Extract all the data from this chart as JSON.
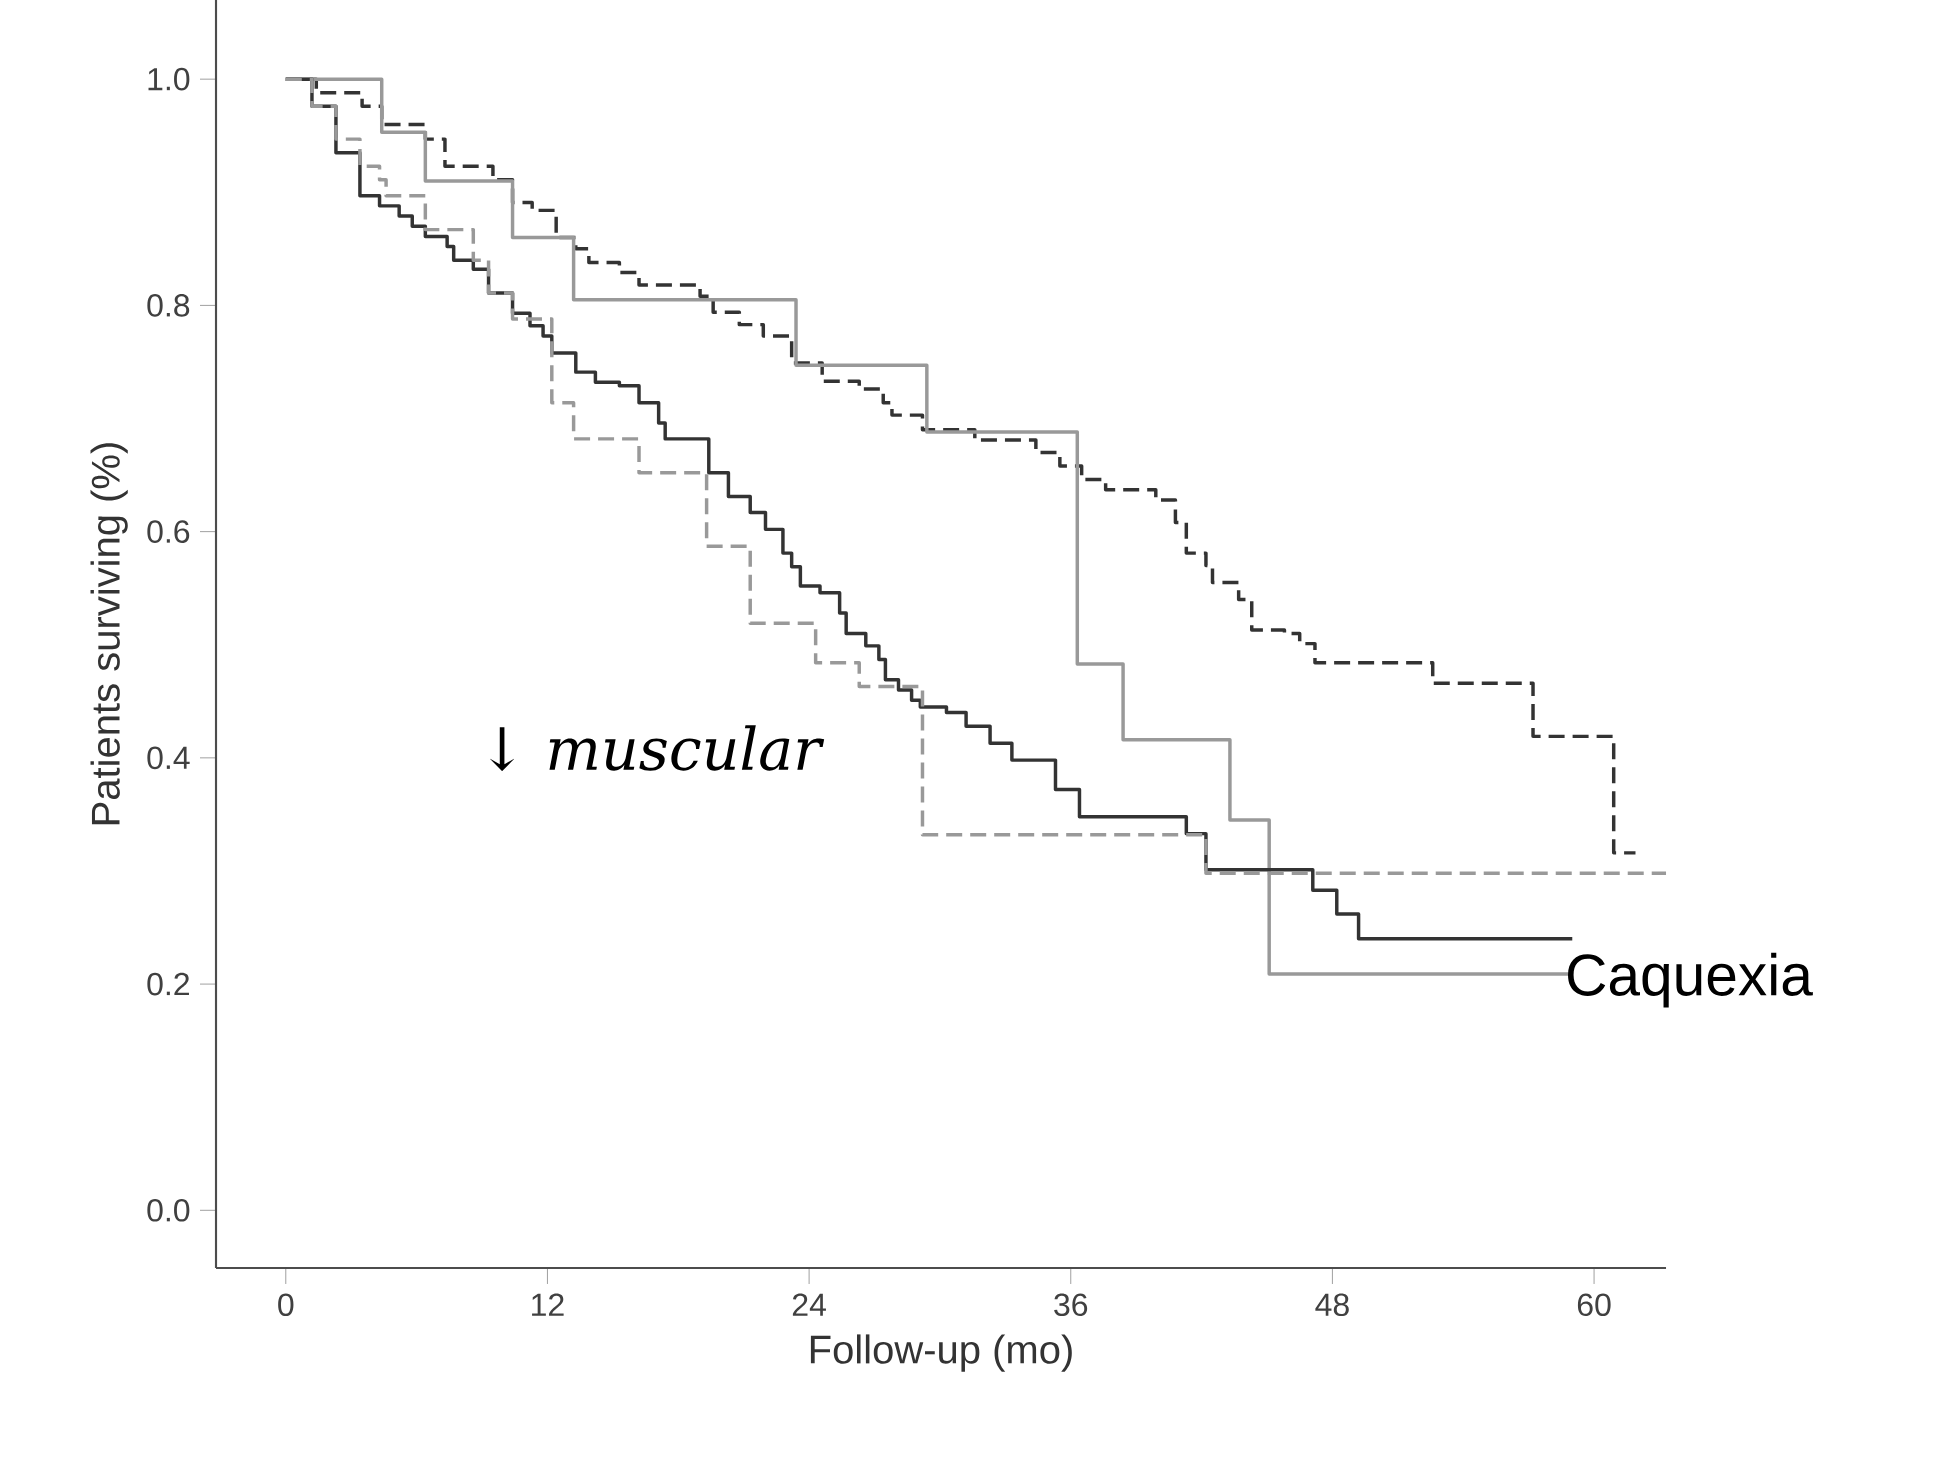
{
  "chart_data": {
    "type": "step",
    "xlabel": "Follow-up (mo)",
    "ylabel": "Patients surviving (%)",
    "xlim": [
      -3.2,
      63.3
    ],
    "ylim": [
      -0.051,
      1.07
    ],
    "xticks": [
      0,
      12,
      24,
      36,
      48,
      60
    ],
    "yticks": [
      {
        "value": 0,
        "label": "0.0"
      },
      0.2,
      0.4,
      0.6,
      0.8,
      {
        "value": 1,
        "label": "1.0"
      }
    ],
    "marker": "none",
    "annotations": [
      "↓ *muscular*",
      "Caquexia"
    ],
    "series": [
      {
        "color": "#333333",
        "line_style": "dashed",
        "x": [
          0,
          1.4,
          3.5,
          4.4,
          6.4,
          7.3,
          9.5,
          10.4,
          11.3,
          12.4,
          13.3,
          13.9,
          15.3,
          16.2,
          19.0,
          19.6,
          20.8,
          21.9,
          23.2,
          24.6,
          26.3,
          27.4,
          27.8,
          29.2,
          31.6,
          34.4,
          35.5,
          36.5,
          37.6,
          39.9,
          40.8,
          41.3,
          42.2,
          42.5,
          43.7,
          44.3,
          45.8,
          46.5,
          47.2,
          52.6,
          57.2,
          60.9,
          61.9
        ],
        "values": [
          1.0,
          0.988,
          0.976,
          0.96,
          0.947,
          0.923,
          0.911,
          0.891,
          0.884,
          0.86,
          0.85,
          0.838,
          0.829,
          0.818,
          0.808,
          0.794,
          0.783,
          0.773,
          0.749,
          0.733,
          0.726,
          0.714,
          0.703,
          0.69,
          0.681,
          0.67,
          0.658,
          0.646,
          0.637,
          0.628,
          0.608,
          0.581,
          0.57,
          0.555,
          0.54,
          0.513,
          0.51,
          0.501,
          0.484,
          0.466,
          0.419,
          0.316,
          0.316
        ]
      },
      {
        "color": "#999999",
        "line_style": "solid",
        "x": [
          0,
          4.4,
          6.4,
          10.4,
          13.2,
          23.4,
          29.4,
          36.3,
          38.4,
          43.3,
          45.1,
          59.0
        ],
        "values": [
          1.0,
          0.953,
          0.91,
          0.86,
          0.805,
          0.747,
          0.688,
          0.483,
          0.416,
          0.345,
          0.209,
          0.209
        ]
      },
      {
        "color": "#333333",
        "line_style": "solid",
        "x": [
          0,
          1.2,
          2.3,
          3.4,
          4.3,
          5.2,
          5.8,
          6.4,
          7.4,
          7.7,
          8.6,
          9.3,
          10.4,
          11.2,
          11.8,
          12.2,
          13.3,
          14.2,
          15.3,
          16.2,
          17.1,
          17.4,
          19.4,
          20.3,
          21.3,
          22.0,
          22.8,
          23.2,
          23.6,
          24.5,
          25.4,
          25.7,
          26.6,
          27.2,
          27.5,
          28.1,
          28.7,
          29.1,
          30.3,
          31.2,
          32.3,
          33.3,
          35.3,
          36.4,
          41.3,
          42.2,
          47.1,
          48.2,
          49.2,
          59.0
        ],
        "values": [
          1.0,
          0.976,
          0.935,
          0.897,
          0.888,
          0.879,
          0.87,
          0.861,
          0.852,
          0.84,
          0.832,
          0.811,
          0.793,
          0.782,
          0.773,
          0.758,
          0.741,
          0.732,
          0.729,
          0.714,
          0.696,
          0.682,
          0.652,
          0.631,
          0.617,
          0.602,
          0.581,
          0.569,
          0.552,
          0.546,
          0.528,
          0.51,
          0.499,
          0.487,
          0.469,
          0.46,
          0.451,
          0.445,
          0.44,
          0.428,
          0.413,
          0.398,
          0.372,
          0.348,
          0.333,
          0.301,
          0.283,
          0.262,
          0.24,
          0.24
        ]
      },
      {
        "color": "#999999",
        "line_style": "dashed",
        "x": [
          0,
          1.2,
          2.3,
          3.4,
          4.3,
          4.6,
          6.4,
          8.6,
          9.3,
          10.4,
          12.2,
          13.2,
          16.2,
          19.3,
          21.3,
          24.3,
          26.3,
          29.2,
          42.2,
          63.3
        ],
        "values": [
          1.0,
          0.976,
          0.947,
          0.923,
          0.911,
          0.897,
          0.867,
          0.84,
          0.811,
          0.788,
          0.714,
          0.682,
          0.652,
          0.587,
          0.519,
          0.484,
          0.463,
          0.332,
          0.298,
          0.298
        ]
      }
    ]
  }
}
